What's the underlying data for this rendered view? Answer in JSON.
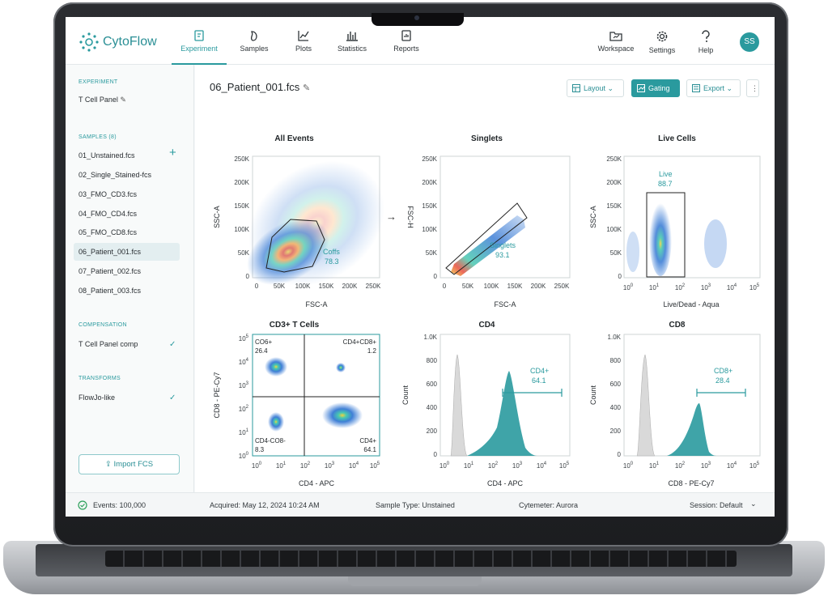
{
  "app": {
    "name": "CytoFlow",
    "user_initials": "SS",
    "accent": "#2a9a9e"
  },
  "nav": {
    "items": [
      {
        "label": "Experiment",
        "icon": "experiment-icon"
      },
      {
        "label": "Samples",
        "icon": "samples-icon"
      },
      {
        "label": "Plots",
        "icon": "plots-icon"
      },
      {
        "label": "Statistics",
        "icon": "statistics-icon"
      },
      {
        "label": "Reports",
        "icon": "reports-icon"
      }
    ],
    "active": "Experiment",
    "right": [
      {
        "label": "Workspace",
        "icon": "workspace-icon"
      },
      {
        "label": "Settings",
        "icon": "gear-icon"
      },
      {
        "label": "Help",
        "icon": "help-icon"
      }
    ]
  },
  "sidebar": {
    "experiment_heading": "EXPERIMENT",
    "experiment_name": "T Cell Panel",
    "samples_heading": "SAMPLES (8)",
    "samples": [
      "01_Unstained.fcs",
      "02_Single_Stained-fcs",
      "03_FMO_CD3.fcs",
      "04_FMO_CD4.fcs",
      "05_FMO_CD8.fcs",
      "06_Patient_001.fcs",
      "07_Patient_002.fcs",
      "08_Patient_003.fcs"
    ],
    "selected_sample": "06_Patient_001.fcs",
    "compensation_heading": "COMPENSATION",
    "compensation_item": "T Cell Panel comp",
    "transforms_heading": "TRANSFORMS",
    "transforms_item": "FlowJo-like",
    "import_label": "Import FCS"
  },
  "main": {
    "file_title": "06_Patient_001.fcs",
    "toolbar": {
      "layout": "Layout",
      "gating": "Gating",
      "export": "Export"
    }
  },
  "plots": {
    "all_events": {
      "title": "All Events",
      "xlabel": "FSC-A",
      "ylabel": "SSC-A",
      "gate_name": "Coffs",
      "gate_value": "78.3",
      "yticks": [
        "250K",
        "200K",
        "150K",
        "100K",
        "50K",
        "0"
      ],
      "xticks": [
        "0",
        "50K",
        "100K",
        "150K",
        "200K",
        "250K"
      ]
    },
    "singlets": {
      "title": "Singlets",
      "xlabel": "FSC-A",
      "ylabel": "FSC-H",
      "gate_name": "Singlets",
      "gate_value": "93.1",
      "yticks": [
        "250K",
        "200K",
        "150K",
        "100K",
        "50K",
        "0"
      ],
      "xticks": [
        "0",
        "50K",
        "100K",
        "150K",
        "200K",
        "250K"
      ]
    },
    "live_cells": {
      "title": "Live Cells",
      "xlabel": "Live/Dead - Aqua",
      "ylabel": "SSC-A",
      "gate_name": "Live",
      "gate_value": "88.7",
      "yticks": [
        "250K",
        "200K",
        "150K",
        "100K",
        "50K",
        "0"
      ],
      "xticks": [
        "0",
        "1",
        "2",
        "3",
        "4",
        "5"
      ]
    },
    "cd3": {
      "title": "CD3+ T Cells",
      "xlabel": "CD4 - APC",
      "ylabel": "CD8 - PE-Cy7",
      "q_ul": "CO6+",
      "q_ul_v": "26.4",
      "q_ur": "CD4+CD8+",
      "q_ur_v": "1.2",
      "q_ll": "CD4-CO8-",
      "q_ll_v": "8.3",
      "q_lr": "CD4+",
      "q_lr_v": "64.1",
      "ticks": [
        "0",
        "1",
        "2",
        "3",
        "4",
        "5"
      ]
    },
    "cd4": {
      "title": "CD4",
      "xlabel": "CD4 - APC",
      "ylabel": "Count",
      "gate_name": "CD4+",
      "gate_value": "64.1",
      "yticks": [
        "1.0K",
        "800",
        "600",
        "400",
        "200",
        "0"
      ],
      "xticks": [
        "0",
        "1",
        "2",
        "3",
        "4",
        "5"
      ]
    },
    "cd8": {
      "title": "CD8",
      "xlabel": "CD8 - PE-Cy7",
      "ylabel": "Count",
      "gate_name": "CD8+",
      "gate_value": "28.4",
      "yticks": [
        "1.0K",
        "800",
        "600",
        "400",
        "200",
        "0"
      ],
      "xticks": [
        "0",
        "1",
        "2",
        "3",
        "4",
        "5"
      ]
    }
  },
  "status": {
    "events": "Events: 100,000",
    "acquired": "Acquired: May 12, 2024 10:24 AM",
    "sample_type": "Sample Type: Unstained",
    "cytometer": "Cytemeter: Aurora",
    "session": "Session: Default"
  }
}
